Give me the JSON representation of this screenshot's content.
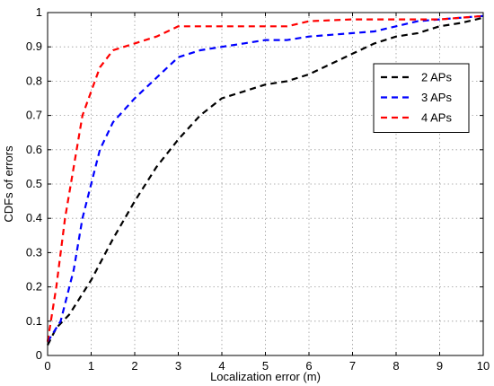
{
  "chart_data": {
    "type": "line",
    "title": "",
    "xlabel": "Localization error (m)",
    "ylabel": "CDFs of errors",
    "xlim": [
      0,
      10
    ],
    "ylim": [
      0,
      1
    ],
    "xticks": [
      0,
      1,
      2,
      3,
      4,
      5,
      6,
      7,
      8,
      9,
      10
    ],
    "yticks": [
      0,
      0.1,
      0.2,
      0.3,
      0.4,
      0.5,
      0.6,
      0.7,
      0.8,
      0.9,
      1
    ],
    "xtick_labels": [
      "0",
      "1",
      "2",
      "3",
      "4",
      "5",
      "6",
      "7",
      "8",
      "9",
      "10"
    ],
    "ytick_labels": [
      "0",
      "0.1",
      "0.2",
      "0.3",
      "0.4",
      "0.5",
      "0.6",
      "0.7",
      "0.8",
      "0.9",
      "1"
    ],
    "grid": true,
    "legend_position": "top-right",
    "series": [
      {
        "name": "2 APs",
        "color": "#000000",
        "line_style": "dashed",
        "x": [
          0,
          0.2,
          0.5,
          1.0,
          1.5,
          2.0,
          2.5,
          3.0,
          3.5,
          4.0,
          4.5,
          5.0,
          5.5,
          6.0,
          6.5,
          7.0,
          7.5,
          8.0,
          8.5,
          9.0,
          9.5,
          10.0
        ],
        "y": [
          0.03,
          0.08,
          0.12,
          0.22,
          0.34,
          0.45,
          0.55,
          0.63,
          0.7,
          0.75,
          0.77,
          0.79,
          0.8,
          0.82,
          0.85,
          0.88,
          0.91,
          0.93,
          0.94,
          0.96,
          0.97,
          0.985
        ]
      },
      {
        "name": "3 APs",
        "color": "#0000ff",
        "line_style": "dashed",
        "x": [
          0,
          0.3,
          0.6,
          0.8,
          1.0,
          1.2,
          1.5,
          2.0,
          2.5,
          3.0,
          3.5,
          4.0,
          4.5,
          5.0,
          5.5,
          6.0,
          6.5,
          7.0,
          7.5,
          8.0,
          8.5,
          9.0,
          9.5,
          10.0
        ],
        "y": [
          0.04,
          0.1,
          0.25,
          0.4,
          0.5,
          0.6,
          0.68,
          0.75,
          0.81,
          0.87,
          0.89,
          0.9,
          0.91,
          0.92,
          0.92,
          0.93,
          0.935,
          0.94,
          0.945,
          0.96,
          0.975,
          0.98,
          0.985,
          0.99
        ]
      },
      {
        "name": "4 APs",
        "color": "#ff0000",
        "line_style": "dashed",
        "x": [
          0,
          0.2,
          0.4,
          0.6,
          0.8,
          1.0,
          1.2,
          1.5,
          2.0,
          2.5,
          3.0,
          4.0,
          5.0,
          5.5,
          6.0,
          7.0,
          8.0,
          9.0,
          9.5,
          10.0
        ],
        "y": [
          0.04,
          0.2,
          0.4,
          0.55,
          0.7,
          0.77,
          0.84,
          0.89,
          0.91,
          0.93,
          0.96,
          0.96,
          0.96,
          0.96,
          0.975,
          0.98,
          0.98,
          0.98,
          0.985,
          0.99
        ]
      }
    ]
  }
}
